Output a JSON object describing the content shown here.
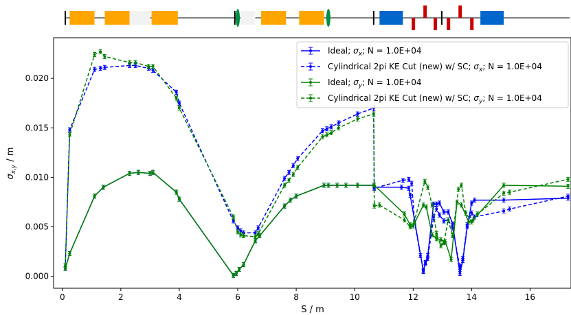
{
  "chart_data": {
    "type": "line",
    "xlabel": "S / m",
    "ylabel_main": "σ",
    "ylabel_sub": "x,y",
    "ylabel_suffix": " / m",
    "xlim": [
      -0.3,
      17.4
    ],
    "ylim": [
      -0.0012,
      0.0241
    ],
    "x_ticks": [
      0,
      2,
      4,
      6,
      8,
      10,
      12,
      14,
      16
    ],
    "x_tick_labels": [
      "0",
      "2",
      "4",
      "6",
      "8",
      "10",
      "12",
      "14",
      "16"
    ],
    "y_ticks": [
      0.0,
      0.005,
      0.01,
      0.015,
      0.02
    ],
    "y_tick_labels": [
      "0.000",
      "0.005",
      "0.010",
      "0.015",
      "0.020"
    ],
    "grid": false,
    "legend_position": "top-right",
    "series": [
      {
        "label_parts": [
          "Ideal; ",
          "σ",
          "x",
          "; N = 1.0E+04"
        ],
        "color": "#0000ff",
        "dash": "solid",
        "x": [
          0.1,
          0.25,
          1.1,
          1.4,
          2.3,
          2.6,
          3.0,
          3.1,
          3.9,
          4.0,
          5.85,
          5.95,
          6.05,
          6.2,
          6.6,
          6.75,
          7.6,
          7.8,
          8.0,
          8.95,
          9.1,
          9.4,
          9.7,
          10.1,
          10.65,
          10.67,
          11.6,
          11.85,
          11.9,
          12.35,
          12.42,
          12.5,
          12.7,
          12.8,
          12.9,
          13.05,
          13.2,
          13.35,
          13.6,
          13.7,
          13.85,
          14.0,
          14.1,
          15.1,
          17.3
        ],
        "y": [
          0.0008,
          0.0023,
          0.0081,
          0.009,
          0.0104,
          0.0105,
          0.0104,
          0.0105,
          0.0085,
          0.0078,
          0.0001,
          0.0003,
          0.0007,
          0.0012,
          0.0036,
          0.0041,
          0.0071,
          0.0077,
          0.0081,
          0.0092,
          0.0092,
          0.0092,
          0.0092,
          0.0092,
          0.0092,
          0.009,
          0.009,
          0.0089,
          0.0082,
          0.0005,
          0.0014,
          0.0021,
          0.0073,
          0.0073,
          0.0074,
          0.0065,
          0.0065,
          0.0053,
          0.0003,
          0.0016,
          0.005,
          0.0074,
          0.0077,
          0.0077,
          0.0079
        ]
      },
      {
        "label_parts": [
          "Cylindrical 2pi KE Cut (new) w/ SC; ",
          "σ",
          "x",
          "; N = 1.0E+04"
        ],
        "color": "#0000ff",
        "dash": "dashed",
        "x": [
          0.1,
          0.25,
          1.1,
          1.3,
          1.45,
          2.3,
          2.5,
          2.95,
          3.1,
          3.9,
          4.0,
          5.85,
          6.0,
          6.1,
          6.2,
          6.6,
          6.7,
          7.6,
          7.75,
          7.9,
          8.05,
          8.9,
          9.05,
          9.2,
          9.45,
          10.1,
          10.65,
          10.67,
          11.65,
          11.85,
          11.95,
          12.05,
          12.25,
          12.35,
          12.42,
          12.5,
          12.7,
          12.8,
          12.9,
          13.05,
          13.2,
          13.35,
          13.6,
          13.7,
          13.85,
          14.0,
          14.1,
          15.1,
          15.3,
          17.3
        ],
        "y": [
          0.0008,
          0.0148,
          0.0209,
          0.021,
          0.0211,
          0.0213,
          0.0213,
          0.021,
          0.0208,
          0.0186,
          0.0175,
          0.0056,
          0.0049,
          0.0046,
          0.0044,
          0.0044,
          0.0049,
          0.0099,
          0.0105,
          0.0112,
          0.0119,
          0.0147,
          0.0149,
          0.0151,
          0.0155,
          0.0164,
          0.017,
          0.0089,
          0.0097,
          0.0098,
          0.0094,
          0.0055,
          0.0021,
          0.0006,
          0.0013,
          0.0018,
          0.006,
          0.0068,
          0.0062,
          0.0056,
          0.0057,
          0.0049,
          0.0009,
          0.0018,
          0.0052,
          0.0064,
          0.006,
          0.0066,
          0.0068,
          0.0081
        ]
      },
      {
        "label_parts": [
          "Ideal; ",
          "σ",
          "y",
          "; N = 1.0E+04"
        ],
        "color": "#008000",
        "dash": "solid",
        "x": [
          0.1,
          0.25,
          1.1,
          1.4,
          2.3,
          2.6,
          3.0,
          3.1,
          3.9,
          4.0,
          5.85,
          5.95,
          6.05,
          6.2,
          6.6,
          6.75,
          7.6,
          7.8,
          8.0,
          8.95,
          9.1,
          9.4,
          9.7,
          10.1,
          10.65,
          10.67,
          11.7,
          11.9,
          12.05,
          12.35,
          12.45,
          12.65,
          12.8,
          12.95,
          13.1,
          13.3,
          13.5,
          13.65,
          13.9,
          14.05,
          15.1,
          17.3
        ],
        "y": [
          0.0008,
          0.0023,
          0.0081,
          0.009,
          0.0104,
          0.0105,
          0.0104,
          0.0105,
          0.0085,
          0.0078,
          0.0001,
          0.0003,
          0.0007,
          0.0012,
          0.0036,
          0.0041,
          0.0071,
          0.0077,
          0.0081,
          0.0092,
          0.0092,
          0.0092,
          0.0092,
          0.0092,
          0.0092,
          0.0092,
          0.0063,
          0.0052,
          0.0054,
          0.0072,
          0.007,
          0.0042,
          0.0038,
          0.0037,
          0.0035,
          0.0017,
          0.0075,
          0.0072,
          0.0055,
          0.0057,
          0.0092,
          0.0091
        ]
      },
      {
        "label_parts": [
          "Cylindrical 2pi KE Cut (new) w/ SC; ",
          "σ",
          "y",
          "; N = 1.0E+04"
        ],
        "color": "#008000",
        "dash": "dashed",
        "x": [
          0.1,
          0.25,
          1.1,
          1.3,
          1.45,
          2.3,
          2.5,
          2.95,
          3.1,
          3.9,
          4.0,
          5.85,
          6.0,
          6.1,
          6.2,
          6.6,
          6.7,
          7.6,
          7.75,
          7.9,
          8.05,
          8.9,
          9.05,
          9.2,
          9.45,
          10.1,
          10.65,
          10.67,
          10.85,
          11.7,
          11.9,
          12.0,
          12.4,
          12.5,
          12.65,
          12.8,
          12.95,
          13.05,
          13.2,
          13.35,
          13.55,
          13.65,
          13.8,
          14.0,
          14.2,
          15.1,
          15.3,
          17.3
        ],
        "y": [
          0.0011,
          0.0143,
          0.0224,
          0.0227,
          0.0222,
          0.0216,
          0.0216,
          0.0212,
          0.0212,
          0.018,
          0.017,
          0.006,
          0.0045,
          0.0042,
          0.0041,
          0.004,
          0.0043,
          0.0092,
          0.0097,
          0.0103,
          0.011,
          0.0141,
          0.0143,
          0.0145,
          0.015,
          0.0159,
          0.0164,
          0.0071,
          0.0072,
          0.0057,
          0.005,
          0.0051,
          0.0096,
          0.009,
          0.0072,
          0.0043,
          0.0031,
          0.0034,
          0.0057,
          0.0041,
          0.0088,
          0.0092,
          0.0064,
          0.0055,
          0.0063,
          0.0084,
          0.0085,
          0.0098
        ]
      }
    ]
  },
  "lattice": {
    "line_color": "#000000",
    "elements": [
      {
        "type": "marker",
        "start": 0.1,
        "end": 0.1,
        "color": "#000000"
      },
      {
        "type": "dipole",
        "start": 0.25,
        "end": 1.1,
        "color": "#ffa500"
      },
      {
        "type": "dipole",
        "start": 1.45,
        "end": 2.3,
        "color": "#ffa500"
      },
      {
        "type": "drift",
        "start": 2.3,
        "end": 3.0,
        "color": "#f2f2f2"
      },
      {
        "type": "dipole",
        "start": 3.05,
        "end": 3.95,
        "color": "#ffa500"
      },
      {
        "type": "marker",
        "start": 5.9,
        "end": 5.9,
        "color": "#000000"
      },
      {
        "type": "lens",
        "start": 6.0,
        "end": 6.0,
        "color": "#009040"
      },
      {
        "type": "drift",
        "start": 6.1,
        "end": 6.6,
        "color": "#f2f2f2"
      },
      {
        "type": "dipole",
        "start": 6.8,
        "end": 7.65,
        "color": "#ffa500"
      },
      {
        "type": "dipole",
        "start": 8.1,
        "end": 8.95,
        "color": "#ffa500"
      },
      {
        "type": "lens",
        "start": 9.1,
        "end": 9.1,
        "color": "#009040"
      },
      {
        "type": "marker",
        "start": 10.65,
        "end": 10.65,
        "color": "#000000"
      },
      {
        "type": "quad",
        "start": 10.85,
        "end": 11.65,
        "color": "#0066cc"
      },
      {
        "type": "kick-down",
        "start": 11.95,
        "end": 12.05,
        "color": "#cc0000"
      },
      {
        "type": "kick-up",
        "start": 12.35,
        "end": 12.45,
        "color": "#cc0000"
      },
      {
        "type": "kick-down",
        "start": 12.7,
        "end": 12.8,
        "color": "#cc0000"
      },
      {
        "type": "marker",
        "start": 12.98,
        "end": 12.98,
        "color": "#000000"
      },
      {
        "type": "kick-down",
        "start": 13.15,
        "end": 13.25,
        "color": "#cc0000"
      },
      {
        "type": "kick-up",
        "start": 13.55,
        "end": 13.65,
        "color": "#cc0000"
      },
      {
        "type": "kick-down",
        "start": 13.95,
        "end": 14.05,
        "color": "#cc0000"
      },
      {
        "type": "quad",
        "start": 14.3,
        "end": 15.1,
        "color": "#0066cc"
      }
    ]
  }
}
